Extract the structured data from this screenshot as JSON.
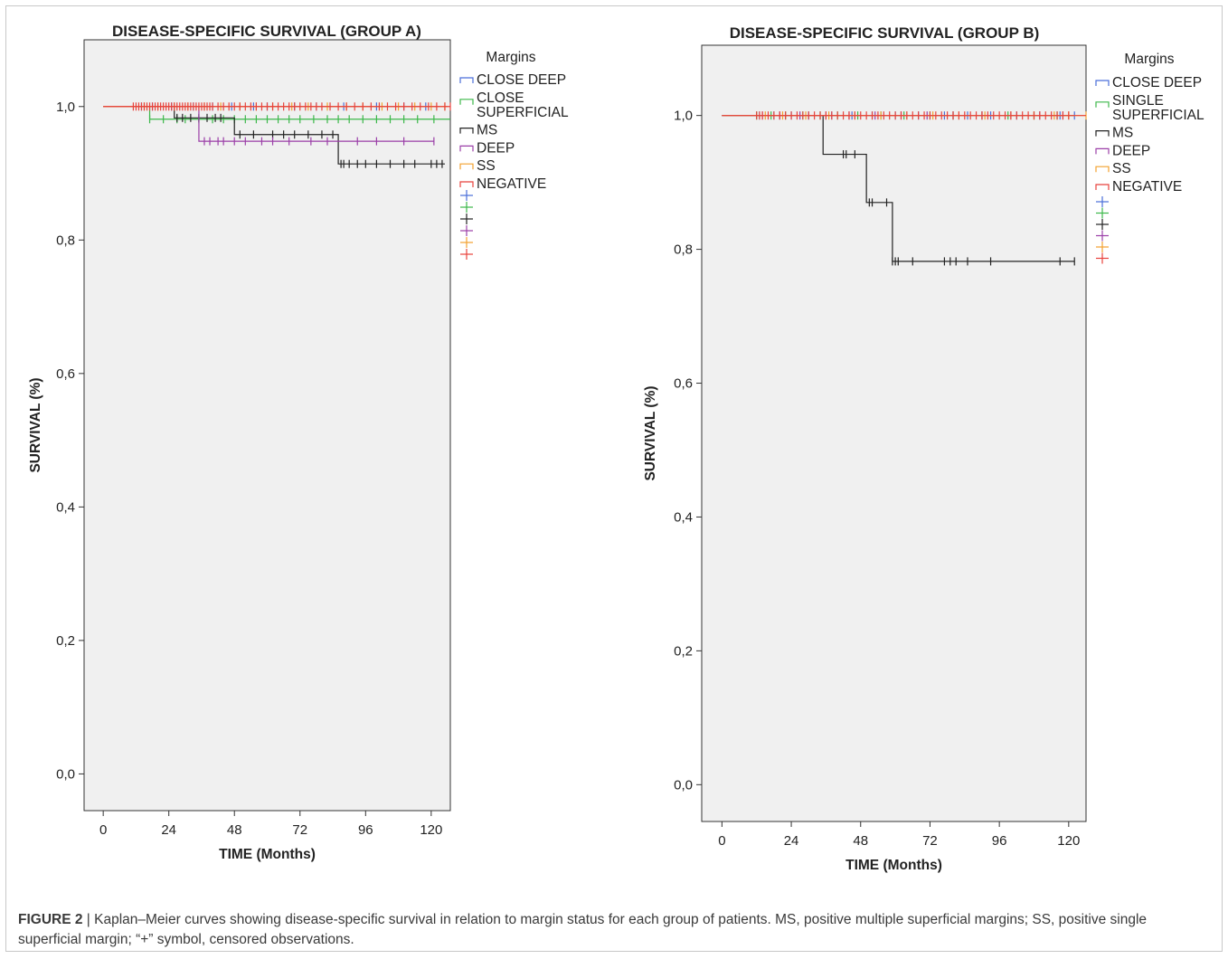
{
  "caption": {
    "label": "FIGURE 2",
    "separator": " | ",
    "text": "Kaplan–Meier curves showing disease-specific survival in relation to margin status for each group of patients. MS, positive multiple superficial margins; SS, positive single superficial margin; “+” symbol, censored observations."
  },
  "chart_data": [
    {
      "type": "line",
      "subtype": "kaplan-meier",
      "title": "DISEASE-SPECIFIC SURVIVAL (GROUP A)",
      "xlabel": "TIME (Months)",
      "ylabel": "SURVIVAL (%)",
      "xticks": [
        "0",
        "24",
        "48",
        "72",
        "96",
        "120"
      ],
      "yticks": [
        "0,0",
        "0,2",
        "0,4",
        "0,6",
        "0,8",
        "1,0"
      ],
      "xlim": [
        -7,
        127
      ],
      "ylim": [
        -0.055,
        1.1
      ],
      "grid": false,
      "legend_title": "Margins",
      "legend_labels": [
        "CLOSE DEEP",
        "CLOSE\nSUPERFICIAL",
        "MS",
        "DEEP",
        "SS",
        "NEGATIVE"
      ],
      "series": [
        {
          "name": "CLOSE DEEP",
          "color": "#4a6ed9",
          "steps": [
            [
              0,
              1.0
            ],
            [
              123,
              1.0
            ]
          ],
          "censored": [
            14,
            18,
            25,
            33,
            40,
            47,
            55,
            60,
            70,
            78,
            88,
            100,
            110,
            118
          ]
        },
        {
          "name": "CLOSE\nSUPERFICIAL",
          "color": "#3cb84a",
          "steps": [
            [
              0,
              1.0
            ],
            [
              17,
              0.981
            ],
            [
              127,
              0.981
            ]
          ],
          "censored": [
            17,
            22,
            27,
            30,
            35,
            40,
            44,
            48,
            52,
            56,
            60,
            64,
            68,
            72,
            77,
            82,
            86,
            90,
            95,
            100,
            105,
            110,
            115,
            121
          ]
        },
        {
          "name": "MS",
          "color": "#222222",
          "steps": [
            [
              0,
              1.0
            ],
            [
              26,
              0.983
            ],
            [
              48,
              0.958
            ],
            [
              86,
              0.914
            ],
            [
              125,
              0.914
            ]
          ],
          "censored": [
            27,
            29,
            32,
            35,
            38,
            41,
            43,
            50,
            55,
            62,
            66,
            70,
            75,
            80,
            84,
            87,
            88,
            90,
            93,
            96,
            100,
            105,
            110,
            114,
            120,
            122,
            124
          ]
        },
        {
          "name": "DEEP",
          "color": "#9b3fa8",
          "steps": [
            [
              0,
              1.0
            ],
            [
              35,
              0.948
            ],
            [
              121,
              0.948
            ]
          ],
          "censored": [
            37,
            39,
            42,
            44,
            48,
            52,
            58,
            62,
            68,
            76,
            82,
            93,
            100,
            110,
            121
          ]
        },
        {
          "name": "SS",
          "color": "#f2a12e",
          "steps": [
            [
              0,
              1.0
            ],
            [
              126,
              1.0
            ]
          ],
          "censored": [
            15,
            20,
            26,
            31,
            37,
            43,
            50,
            56,
            62,
            69,
            75,
            82,
            89,
            95,
            102,
            108,
            114,
            120,
            125
          ]
        },
        {
          "name": "NEGATIVE",
          "color": "#e8423c",
          "steps": [
            [
              0,
              1.0
            ],
            [
              127,
              1.0
            ]
          ],
          "censored": [
            11,
            12,
            13,
            14,
            15,
            16,
            17,
            18,
            19,
            20,
            21,
            22,
            23,
            24,
            25,
            26,
            27,
            28,
            29,
            30,
            31,
            32,
            33,
            34,
            35,
            36,
            37,
            38,
            39,
            40,
            42,
            44,
            46,
            48,
            50,
            52,
            54,
            56,
            58,
            60,
            62,
            64,
            66,
            68,
            70,
            72,
            74,
            76,
            78,
            80,
            83,
            86,
            89,
            92,
            95,
            98,
            101,
            104,
            107,
            110,
            113,
            116,
            119,
            122,
            125,
            127
          ]
        }
      ]
    },
    {
      "type": "line",
      "subtype": "kaplan-meier",
      "title": "DISEASE-SPECIFIC SURVIVAL (GROUP B)",
      "xlabel": "TIME (Months)",
      "ylabel": "SURVIVAL (%)",
      "xticks": [
        "0",
        "24",
        "48",
        "72",
        "96",
        "120"
      ],
      "yticks": [
        "0,0",
        "0,2",
        "0,4",
        "0,6",
        "0,8",
        "1,0"
      ],
      "xlim": [
        -7,
        126
      ],
      "ylim": [
        -0.055,
        1.105
      ],
      "grid": false,
      "legend_title": "Margins",
      "legend_labels": [
        "CLOSE DEEP",
        "SINGLE\nSUPERFICIAL",
        "MS",
        "DEEP",
        "SS",
        "NEGATIVE"
      ],
      "series": [
        {
          "name": "CLOSE DEEP",
          "color": "#4a6ed9",
          "steps": [
            [
              0,
              1.0
            ],
            [
              122,
              1.0
            ]
          ],
          "censored": [
            13,
            18,
            24,
            30,
            38,
            45,
            52,
            60,
            68,
            77,
            85,
            93,
            102,
            110,
            117,
            122
          ]
        },
        {
          "name": "SINGLE\nSUPERFICIAL",
          "color": "#3cb84a",
          "steps": [
            [
              0,
              1.0
            ],
            [
              122,
              1.0
            ]
          ],
          "censored": [
            12,
            17,
            22,
            28,
            34,
            40,
            47,
            55,
            63,
            72,
            80,
            90,
            99,
            108,
            116
          ]
        },
        {
          "name": "MS",
          "color": "#222222",
          "steps": [
            [
              0,
              1.0
            ],
            [
              35,
              0.942
            ],
            [
              50,
              0.87
            ],
            [
              59,
              0.782
            ],
            [
              122,
              0.782
            ]
          ],
          "censored": [
            42,
            43,
            46,
            51,
            52,
            57,
            59,
            60,
            61,
            66,
            77,
            79,
            81,
            85,
            93,
            117,
            122
          ]
        },
        {
          "name": "DEEP",
          "color": "#9b3fa8",
          "steps": [
            [
              0,
              1.0
            ],
            [
              118,
              1.0
            ]
          ],
          "censored": [
            14,
            20,
            27,
            36,
            44,
            53,
            62,
            71,
            80,
            90,
            100,
            110,
            118
          ]
        },
        {
          "name": "SS",
          "color": "#f2a12e",
          "steps": [
            [
              0,
              1.0
            ],
            [
              126,
              1.0
            ]
          ],
          "censored": [
            15,
            21,
            29,
            37,
            46,
            55,
            64,
            73,
            82,
            91,
            100,
            108,
            115,
            120,
            126
          ]
        },
        {
          "name": "NEGATIVE",
          "color": "#e8423c",
          "steps": [
            [
              0,
              1.0
            ],
            [
              126,
              1.0
            ]
          ],
          "censored": [
            12,
            13,
            14,
            16,
            18,
            20,
            22,
            24,
            26,
            28,
            30,
            32,
            34,
            36,
            38,
            40,
            42,
            44,
            46,
            48,
            50,
            52,
            54,
            56,
            58,
            60,
            62,
            64,
            66,
            68,
            70,
            72,
            74,
            76,
            78,
            80,
            82,
            84,
            86,
            88,
            90,
            92,
            94,
            96,
            98,
            100,
            102,
            104,
            106,
            108,
            110,
            112,
            114,
            116,
            118,
            120
          ]
        }
      ]
    }
  ]
}
